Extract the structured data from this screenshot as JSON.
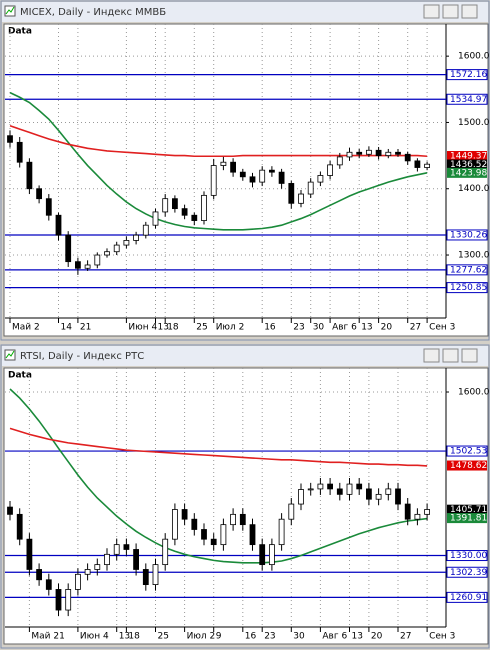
{
  "chart_data": [
    {
      "type": "candlestick",
      "window_title": "MICEX, Daily - Индекс ММВБ",
      "data_label": "Data",
      "categories": [
        "Май 2",
        null,
        null,
        null,
        null,
        "14",
        null,
        "21",
        null,
        null,
        null,
        null,
        "Июн 4",
        null,
        null,
        "13",
        "18",
        null,
        null,
        "25",
        null,
        "Июл 2",
        null,
        null,
        null,
        null,
        "16",
        null,
        null,
        "23",
        null,
        "30",
        null,
        "Авг 6",
        null,
        null,
        "13",
        null,
        "20",
        null,
        null,
        "27",
        null,
        "Сен 3"
      ],
      "open": [
        1480,
        1470,
        1440,
        1400,
        1385,
        1360,
        1330,
        1290,
        1280,
        1285,
        1300,
        1305,
        1315,
        1322,
        1330,
        1345,
        1365,
        1385,
        1370,
        1360,
        1352,
        1390,
        1435,
        1440,
        1425,
        1418,
        1410,
        1428,
        1425,
        1408,
        1378,
        1392,
        1410,
        1420,
        1436,
        1448,
        1455,
        1452,
        1458,
        1450,
        1455,
        1452,
        1442,
        1432
      ],
      "high": [
        1488,
        1478,
        1446,
        1405,
        1392,
        1364,
        1336,
        1296,
        1292,
        1304,
        1310,
        1320,
        1328,
        1335,
        1350,
        1370,
        1392,
        1390,
        1376,
        1364,
        1396,
        1445,
        1448,
        1446,
        1430,
        1424,
        1434,
        1434,
        1430,
        1412,
        1398,
        1416,
        1426,
        1442,
        1454,
        1462,
        1460,
        1464,
        1463,
        1460,
        1460,
        1456,
        1446,
        1441
      ],
      "low": [
        1462,
        1432,
        1392,
        1378,
        1352,
        1322,
        1282,
        1270,
        1276,
        1280,
        1296,
        1300,
        1310,
        1316,
        1325,
        1340,
        1358,
        1364,
        1354,
        1345,
        1346,
        1384,
        1428,
        1418,
        1412,
        1402,
        1404,
        1418,
        1400,
        1370,
        1372,
        1386,
        1404,
        1414,
        1430,
        1442,
        1446,
        1448,
        1444,
        1446,
        1448,
        1436,
        1426,
        1428
      ],
      "close": [
        1470,
        1440,
        1400,
        1385,
        1360,
        1330,
        1290,
        1280,
        1285,
        1300,
        1305,
        1315,
        1322,
        1330,
        1345,
        1365,
        1385,
        1370,
        1360,
        1352,
        1390,
        1435,
        1440,
        1425,
        1418,
        1410,
        1428,
        1425,
        1408,
        1378,
        1392,
        1410,
        1420,
        1436,
        1448,
        1455,
        1452,
        1458,
        1450,
        1455,
        1452,
        1442,
        1432,
        1437
      ],
      "moving_averages": [
        {
          "color": "#1a8a3a",
          "values": [
            1545,
            1538,
            1530,
            1518,
            1505,
            1488,
            1470,
            1452,
            1435,
            1420,
            1405,
            1392,
            1380,
            1370,
            1362,
            1355,
            1350,
            1346,
            1343,
            1341,
            1340,
            1339,
            1338,
            1338,
            1338,
            1339,
            1340,
            1342,
            1345,
            1350,
            1355,
            1361,
            1368,
            1375,
            1382,
            1389,
            1395,
            1400,
            1405,
            1410,
            1414,
            1418,
            1421,
            1424
          ]
        },
        {
          "color": "#e02020",
          "values": [
            1495,
            1490,
            1485,
            1480,
            1475,
            1471,
            1467,
            1464,
            1461,
            1459,
            1457,
            1456,
            1455,
            1454,
            1453,
            1452,
            1451,
            1450,
            1450,
            1449,
            1449,
            1449,
            1449,
            1449,
            1450,
            1450,
            1450,
            1450,
            1450,
            1450,
            1450,
            1450,
            1450,
            1450,
            1450,
            1450,
            1450,
            1450,
            1450,
            1450,
            1450,
            1450,
            1450,
            1449
          ]
        }
      ],
      "ylim": [
        1205,
        1647
      ],
      "yticks": [
        {
          "value": 1600,
          "label": "1600.00"
        },
        {
          "value": 1500,
          "label": "1500.00"
        },
        {
          "value": 1400,
          "label": "1400.00"
        },
        {
          "value": 1300,
          "label": "1300.00"
        }
      ],
      "hlines": [
        1572.16,
        1534.97,
        1330.26,
        1277.62,
        1250.85
      ],
      "hline_color": "#0000c0",
      "markers": [
        {
          "value": 1449.37,
          "color": "#e00000"
        },
        {
          "value": 1436.52,
          "color": "#000000"
        },
        {
          "value": 1423.98,
          "color": "#1a8a3a"
        }
      ],
      "grid": true
    },
    {
      "type": "candlestick",
      "window_title": "RTSI, Daily - Индекс РТС",
      "data_label": "Data",
      "categories": [
        null,
        null,
        "Май 21",
        null,
        null,
        null,
        null,
        "Июн 4",
        null,
        null,
        null,
        "13",
        "18",
        null,
        null,
        "25",
        null,
        null,
        "Июл 2",
        null,
        null,
        "9",
        null,
        null,
        "16",
        null,
        "23",
        null,
        null,
        "30",
        null,
        null,
        "Авг 6",
        null,
        null,
        "13",
        null,
        "20",
        null,
        null,
        "27",
        null,
        null,
        "Сен 3"
      ],
      "open": [
        1410,
        1398,
        1357,
        1307,
        1290,
        1274,
        1240,
        1274,
        1299,
        1307,
        1315,
        1332,
        1348,
        1340,
        1307,
        1282,
        1315,
        1357,
        1406,
        1390,
        1373,
        1357,
        1348,
        1381,
        1398,
        1381,
        1348,
        1315,
        1348,
        1390,
        1415,
        1439,
        1440,
        1448,
        1440,
        1431,
        1448,
        1440,
        1423,
        1431,
        1440,
        1415,
        1390,
        1398
      ],
      "high": [
        1420,
        1408,
        1367,
        1317,
        1300,
        1284,
        1284,
        1309,
        1317,
        1325,
        1342,
        1358,
        1358,
        1350,
        1317,
        1325,
        1367,
        1416,
        1416,
        1400,
        1383,
        1367,
        1391,
        1408,
        1408,
        1391,
        1358,
        1358,
        1400,
        1425,
        1449,
        1450,
        1458,
        1458,
        1450,
        1458,
        1458,
        1450,
        1441,
        1450,
        1450,
        1425,
        1408,
        1416
      ],
      "low": [
        1388,
        1347,
        1297,
        1280,
        1264,
        1230,
        1230,
        1264,
        1289,
        1297,
        1305,
        1322,
        1330,
        1297,
        1272,
        1272,
        1305,
        1347,
        1380,
        1363,
        1347,
        1338,
        1338,
        1371,
        1371,
        1338,
        1305,
        1305,
        1338,
        1380,
        1405,
        1429,
        1430,
        1430,
        1421,
        1421,
        1430,
        1413,
        1413,
        1421,
        1405,
        1380,
        1380,
        1388
      ],
      "close": [
        1398,
        1357,
        1307,
        1290,
        1274,
        1240,
        1274,
        1299,
        1307,
        1315,
        1332,
        1348,
        1340,
        1307,
        1282,
        1315,
        1357,
        1406,
        1390,
        1373,
        1357,
        1348,
        1381,
        1398,
        1381,
        1348,
        1315,
        1348,
        1390,
        1415,
        1439,
        1440,
        1448,
        1440,
        1431,
        1448,
        1440,
        1423,
        1431,
        1440,
        1415,
        1390,
        1398,
        1406
      ],
      "moving_averages": [
        {
          "color": "#1a8a3a",
          "values": [
            1605,
            1590,
            1572,
            1552,
            1530,
            1507,
            1485,
            1463,
            1443,
            1425,
            1410,
            1395,
            1382,
            1370,
            1360,
            1351,
            1343,
            1337,
            1332,
            1328,
            1325,
            1322,
            1320,
            1319,
            1318,
            1318,
            1318,
            1319,
            1321,
            1325,
            1330,
            1336,
            1342,
            1348,
            1354,
            1360,
            1366,
            1371,
            1376,
            1380,
            1384,
            1387,
            1389,
            1391
          ]
        },
        {
          "color": "#e02020",
          "values": [
            1540,
            1535,
            1530,
            1526,
            1522,
            1519,
            1516,
            1514,
            1512,
            1510,
            1508,
            1506,
            1504,
            1503,
            1502,
            1501,
            1500,
            1499,
            1498,
            1497,
            1496,
            1495,
            1494,
            1493,
            1492,
            1491,
            1490,
            1489,
            1488,
            1488,
            1487,
            1486,
            1485,
            1484,
            1484,
            1483,
            1482,
            1481,
            1481,
            1480,
            1480,
            1479,
            1479,
            1478
          ]
        }
      ],
      "ylim": [
        1212,
        1638
      ],
      "yticks": [
        {
          "value": 1600,
          "label": "1600.00"
        }
      ],
      "hlines": [
        1502.53,
        {
          "value": 1330,
          "label": "1330.00"
        },
        1302.39,
        1260.91
      ],
      "hline_color": "#0000c0",
      "markers": [
        {
          "value": 1478.62,
          "color": "#e00000"
        },
        {
          "value": 1405.71,
          "color": "#000000"
        },
        {
          "value": 1391.81,
          "color": "#1a8a3a"
        }
      ],
      "grid": true
    }
  ]
}
